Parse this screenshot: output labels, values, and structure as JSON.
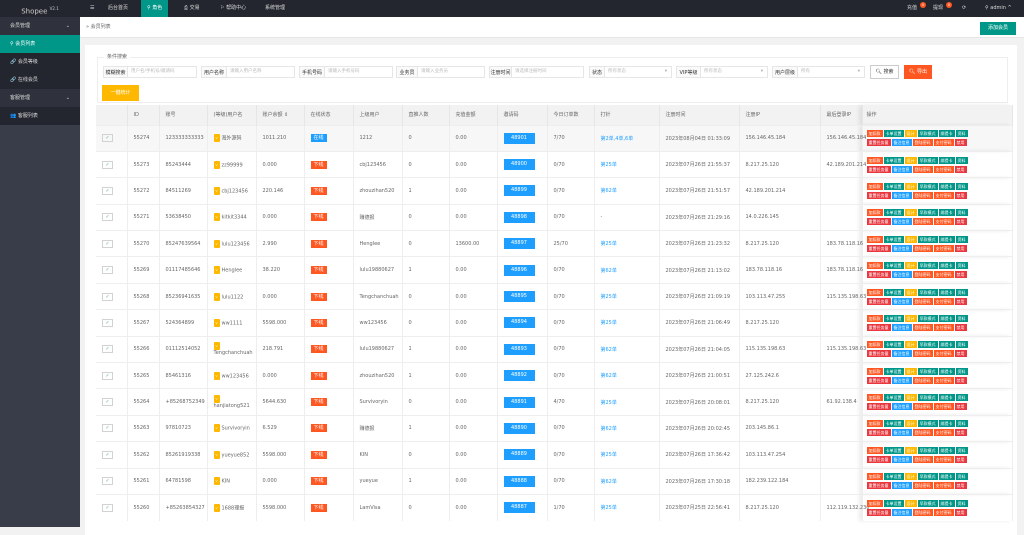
{
  "app": {
    "logo": "Shopee",
    "version": "V2.1"
  },
  "topnav": {
    "menu_icon": "☰",
    "items": [
      {
        "label": "后台首页",
        "icon": ""
      },
      {
        "label": "角色",
        "icon": "user-icon",
        "active": true
      },
      {
        "label": "交易",
        "icon": "print-icon"
      },
      {
        "label": "帮助中心",
        "icon": "flag-icon"
      },
      {
        "label": "系统管理",
        "icon": ""
      }
    ],
    "right": {
      "recharge": "充值",
      "recharge_badge": "0",
      "withdraw": "提现",
      "withdraw_badge": "0",
      "refresh_icon": "⟳",
      "user": "admin"
    }
  },
  "sidebar": {
    "groups": [
      {
        "label": "会员管理",
        "items": [
          {
            "label": "会员列表",
            "active": true
          },
          {
            "label": "会员等级"
          },
          {
            "label": "在线会员"
          }
        ]
      },
      {
        "label": "客服管理",
        "items": [
          {
            "label": "客服列表"
          }
        ]
      }
    ]
  },
  "breadcrumb": "会员列表",
  "add_member": "添加会员",
  "search": {
    "legend": "条件搜索",
    "fields": [
      {
        "label": "模糊搜索",
        "placeholder": "用户名/手机号/邀请码"
      },
      {
        "label": "用户名称",
        "placeholder": "请输入用户名称"
      },
      {
        "label": "手机号码",
        "placeholder": "请输入手机号码"
      },
      {
        "label": "业务员",
        "placeholder": "请输入业务员"
      },
      {
        "label": "注册时间",
        "placeholder": "请选择注册时间"
      },
      {
        "label": "状态",
        "placeholder": "所有状态"
      },
      {
        "label": "VIP等级",
        "placeholder": "所有状态"
      },
      {
        "label": "用户层级",
        "placeholder": "所有"
      }
    ],
    "search_btn": "搜索",
    "export_btn": "导出",
    "stat_btn": "一键统计"
  },
  "table": {
    "headers": [
      "",
      "ID",
      "账号",
      "(等级)用户名",
      "账户余额 ⇕",
      "在线状态",
      "上级用户",
      "直推人数",
      "充值金额",
      "邀请码",
      "今日订单数",
      "打针",
      "注册时间",
      "注册IP",
      "最后登录IP",
      "操作"
    ],
    "actions_row1": [
      {
        "label": "加扣款",
        "color": "#ff5722"
      },
      {
        "label": "卡单设置",
        "color": "#009688"
      },
      {
        "label": "设计",
        "color": "#ffb800"
      },
      {
        "label": "早款模式",
        "color": "#009688"
      },
      {
        "label": "绑提卡",
        "color": "#009688"
      },
      {
        "label": "资料",
        "color": "#009688"
      }
    ],
    "actions_row2": [
      {
        "label": "重置任务量",
        "color": "#e8373e"
      },
      {
        "label": "备注信息",
        "color": "#1e9fff"
      },
      {
        "label": "登陆密码",
        "color": "#ff5722"
      },
      {
        "label": "支付密码",
        "color": "#ff5722"
      },
      {
        "label": "禁用",
        "color": "#e8373e"
      }
    ],
    "status_colors": {
      "在线": "#1e9fff",
      "下线": "#ff5722"
    },
    "rows": [
      [
        "55274",
        "123333333333",
        "海外源码",
        "1011.210",
        "在线",
        "1212",
        "0",
        "0.00",
        "48901",
        "7/70",
        "第2单,4单,6单",
        "2023年08月04日 01:33:09",
        "156.146.45.184",
        "156.146.45.184"
      ],
      [
        "55273",
        "85243444",
        "zz99999",
        "0.000",
        "下线",
        "cbj123456",
        "0",
        "0.00",
        "48900",
        "0/70",
        "第25单",
        "2023年07月26日 21:55:37",
        "8.217.25.120",
        "42.189.201.214"
      ],
      [
        "55272",
        "84511269",
        "cbj123456",
        "220.146",
        "下线",
        "zhouzihan520",
        "1",
        "0.00",
        "48899",
        "0/70",
        "第62单",
        "2023年07月26日 21:51:57",
        "42.189.201.214",
        ""
      ],
      [
        "55271",
        "53638450",
        "kitkit3344",
        "0.000",
        "下线",
        "赚德报",
        "0",
        "0.00",
        "48898",
        "0/70",
        "-",
        "2023年07月26日 21:29:16",
        "14.0.226.145",
        ""
      ],
      [
        "55270",
        "85247639564",
        "lulu123456",
        "2.990",
        "下线",
        "Henglee",
        "0",
        "13600.00",
        "48897",
        "25/70",
        "第25单",
        "2023年07月26日 21:23:32",
        "8.217.25.120",
        "183.78.118.16"
      ],
      [
        "55269",
        "01117485646",
        "Henglee",
        "38.220",
        "下线",
        "lulu19880627",
        "1",
        "0.00",
        "48896",
        "0/70",
        "第62单",
        "2023年07月26日 21:13:02",
        "183.78.118.16",
        "183.78.118.16"
      ],
      [
        "55268",
        "85236941635",
        "lulu1122",
        "0.000",
        "下线",
        "Tengchanchuah",
        "0",
        "0.00",
        "48895",
        "0/70",
        "第25单",
        "2023年07月26日 21:09:19",
        "103.113.47.255",
        "115.135.198.63"
      ],
      [
        "55267",
        "524364899",
        "ww1111",
        "5598.000",
        "下线",
        "ww123456",
        "0",
        "0.00",
        "48894",
        "0/70",
        "第25单",
        "2023年07月26日 21:06:49",
        "8.217.25.120",
        ""
      ],
      [
        "55266",
        "01112514052",
        "Tengchanchuah",
        "218.791",
        "下线",
        "lulu19880627",
        "1",
        "0.00",
        "48893",
        "0/70",
        "第62单",
        "2023年07月26日 21:04:05",
        "115.135.198.63",
        "115.135.198.63"
      ],
      [
        "55265",
        "85461316",
        "ww123456",
        "0.000",
        "下线",
        "zhouzihan520",
        "1",
        "0.00",
        "48892",
        "0/70",
        "第62单",
        "2023年07月26日 21:00:51",
        "27.125.242.6",
        ""
      ],
      [
        "55264",
        "+85268752349",
        "hanjiatong521",
        "5644.630",
        "下线",
        "Survivoryin",
        "0",
        "0.00",
        "48891",
        "4/70",
        "第25单",
        "2023年07月26日 20:08:01",
        "8.217.25.120",
        "61.92.138.4"
      ],
      [
        "55263",
        "97810723",
        "Survivoryin",
        "6.529",
        "下线",
        "赚德报",
        "1",
        "0.00",
        "48890",
        "0/70",
        "第62单",
        "2023年07月26日 20:02:45",
        "203.145.86.1",
        ""
      ],
      [
        "55262",
        "85261919338",
        "yueyue852",
        "5598.000",
        "下线",
        "KIN",
        "0",
        "0.00",
        "48889",
        "0/70",
        "第25单",
        "2023年07月26日 17:36:42",
        "103.113.47.254",
        ""
      ],
      [
        "55261",
        "64781598",
        "KIN",
        "0.000",
        "下线",
        "yueyue",
        "1",
        "0.00",
        "48888",
        "0/70",
        "第62单",
        "2023年07月26日 17:30:18",
        "182.239.122.184",
        ""
      ],
      [
        "55260",
        "+85263854327",
        "1688理报",
        "5598.000",
        "下线",
        "LamVisa",
        "0",
        "0.00",
        "48887",
        "1/70",
        "第25单",
        "2023年07月25日 22:56:41",
        "8.217.25.120",
        "112.119.132.236"
      ]
    ]
  }
}
